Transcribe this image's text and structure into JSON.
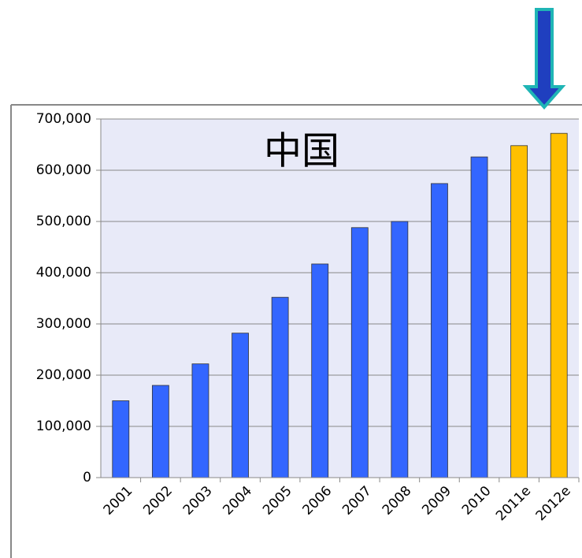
{
  "chart_data": {
    "type": "bar",
    "title": "中国",
    "categories": [
      "2001",
      "2002",
      "2003",
      "2004",
      "2005",
      "2006",
      "2007",
      "2008",
      "2009",
      "2010",
      "2011e",
      "2012e"
    ],
    "values": [
      150000,
      180000,
      222000,
      282000,
      352000,
      417000,
      488000,
      500000,
      574000,
      626000,
      648000,
      672000
    ],
    "colors": [
      "#3366ff",
      "#3366ff",
      "#3366ff",
      "#3366ff",
      "#3366ff",
      "#3366ff",
      "#3366ff",
      "#3366ff",
      "#3366ff",
      "#3366ff",
      "#ffc000",
      "#ffc000"
    ],
    "ylim": [
      0,
      700000
    ],
    "yticks": [
      {
        "value": 0,
        "label": "0"
      },
      {
        "value": 100000,
        "label": "100,000"
      },
      {
        "value": 200000,
        "label": "200,000"
      },
      {
        "value": 300000,
        "label": "300,000"
      },
      {
        "value": 400000,
        "label": "400,000"
      },
      {
        "value": 500000,
        "label": "500,000"
      },
      {
        "value": 600000,
        "label": "600,000"
      },
      {
        "value": 700000,
        "label": "700,000"
      }
    ],
    "grid": true
  }
}
